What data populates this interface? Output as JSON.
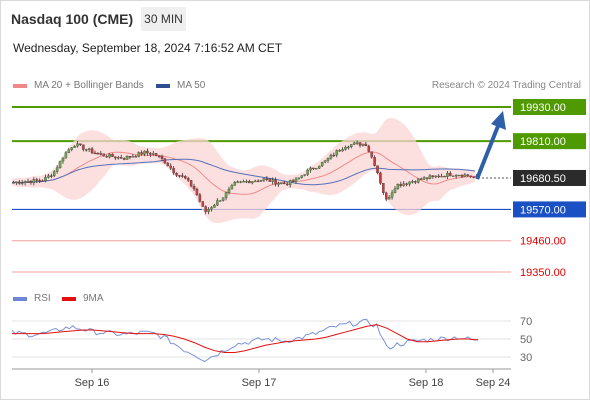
{
  "header": {
    "title": "Nasdaq 100 (CME)",
    "interval": "30 MIN",
    "datetime": "Wednesday, September 18, 2024 7:16:52 AM CET"
  },
  "legend": {
    "ma20": "MA 20 + Bollinger Bands",
    "ma50": "MA 50",
    "copyright": "Research © 2024 Trading Central",
    "rsi": "RSI",
    "rsi_ma": "9MA"
  },
  "colors": {
    "resistance_green": "#4f9a00",
    "support_blue": "#1b4fc4",
    "target_red": "#f2a0a0",
    "arrow": "#2f5fa8",
    "candle_up": "#6aa84f",
    "candle_down": "#cc3b3b",
    "bands_fill": "#fbd6d6",
    "ma20": "#f08a8a",
    "ma50": "#5570b8",
    "rsi_line": "#7b92d8",
    "rsi_ma_line": "#e31010"
  },
  "chart_data": {
    "type": "candlestick",
    "x_ticks": [
      "Sep 16",
      "Sep 17",
      "Sep 18",
      "Sep 24"
    ],
    "last_price": 19680.5,
    "levels": [
      {
        "label": "19930.00",
        "value": 19930.0,
        "kind": "resistance",
        "style": "line-badge"
      },
      {
        "label": "19810.00",
        "value": 19810.0,
        "kind": "resistance",
        "style": "line-badge"
      },
      {
        "label": "19680.50",
        "value": 19680.5,
        "kind": "last",
        "style": "dark-badge"
      },
      {
        "label": "19570.00",
        "value": 19570.0,
        "kind": "pivot",
        "style": "line-badge"
      },
      {
        "label": "19460.00",
        "value": 19460.0,
        "kind": "target",
        "style": "text"
      },
      {
        "label": "19350.00",
        "value": 19350.0,
        "kind": "target",
        "style": "text"
      }
    ],
    "price_path": [
      19665,
      19668,
      19670,
      19674,
      19700,
      19760,
      19800,
      19785,
      19770,
      19760,
      19755,
      19750,
      19760,
      19770,
      19765,
      19740,
      19700,
      19680,
      19640,
      19560,
      19590,
      19620,
      19660,
      19668,
      19672,
      19676,
      19665,
      19660,
      19670,
      19700,
      19720,
      19740,
      19770,
      19795,
      19800,
      19800,
      19720,
      19600,
      19655,
      19664,
      19673,
      19680,
      19686,
      19692,
      19695,
      19690,
      19682
    ],
    "rsi": {
      "ticks": [
        70,
        50,
        30
      ],
      "ylim": [
        20,
        80
      ],
      "values": [
        57,
        56,
        55,
        56,
        58,
        62,
        63,
        61,
        58,
        57,
        56,
        55,
        56,
        57,
        56,
        52,
        45,
        38,
        33,
        27,
        32,
        38,
        44,
        46,
        48,
        50,
        49,
        48,
        50,
        53,
        56,
        60,
        64,
        66,
        68,
        69,
        65,
        40,
        44,
        46,
        48,
        49,
        50,
        51,
        52,
        50,
        48
      ],
      "ma": [
        56,
        56,
        56,
        56,
        57,
        58,
        59,
        60,
        60,
        59,
        58,
        57,
        56,
        56,
        56,
        55,
        53,
        50,
        46,
        41,
        37,
        35,
        35,
        37,
        40,
        43,
        45,
        47,
        48,
        49,
        50,
        52,
        55,
        58,
        61,
        64,
        66,
        62,
        56,
        50,
        47,
        47,
        48,
        49,
        50,
        50,
        49
      ]
    }
  }
}
